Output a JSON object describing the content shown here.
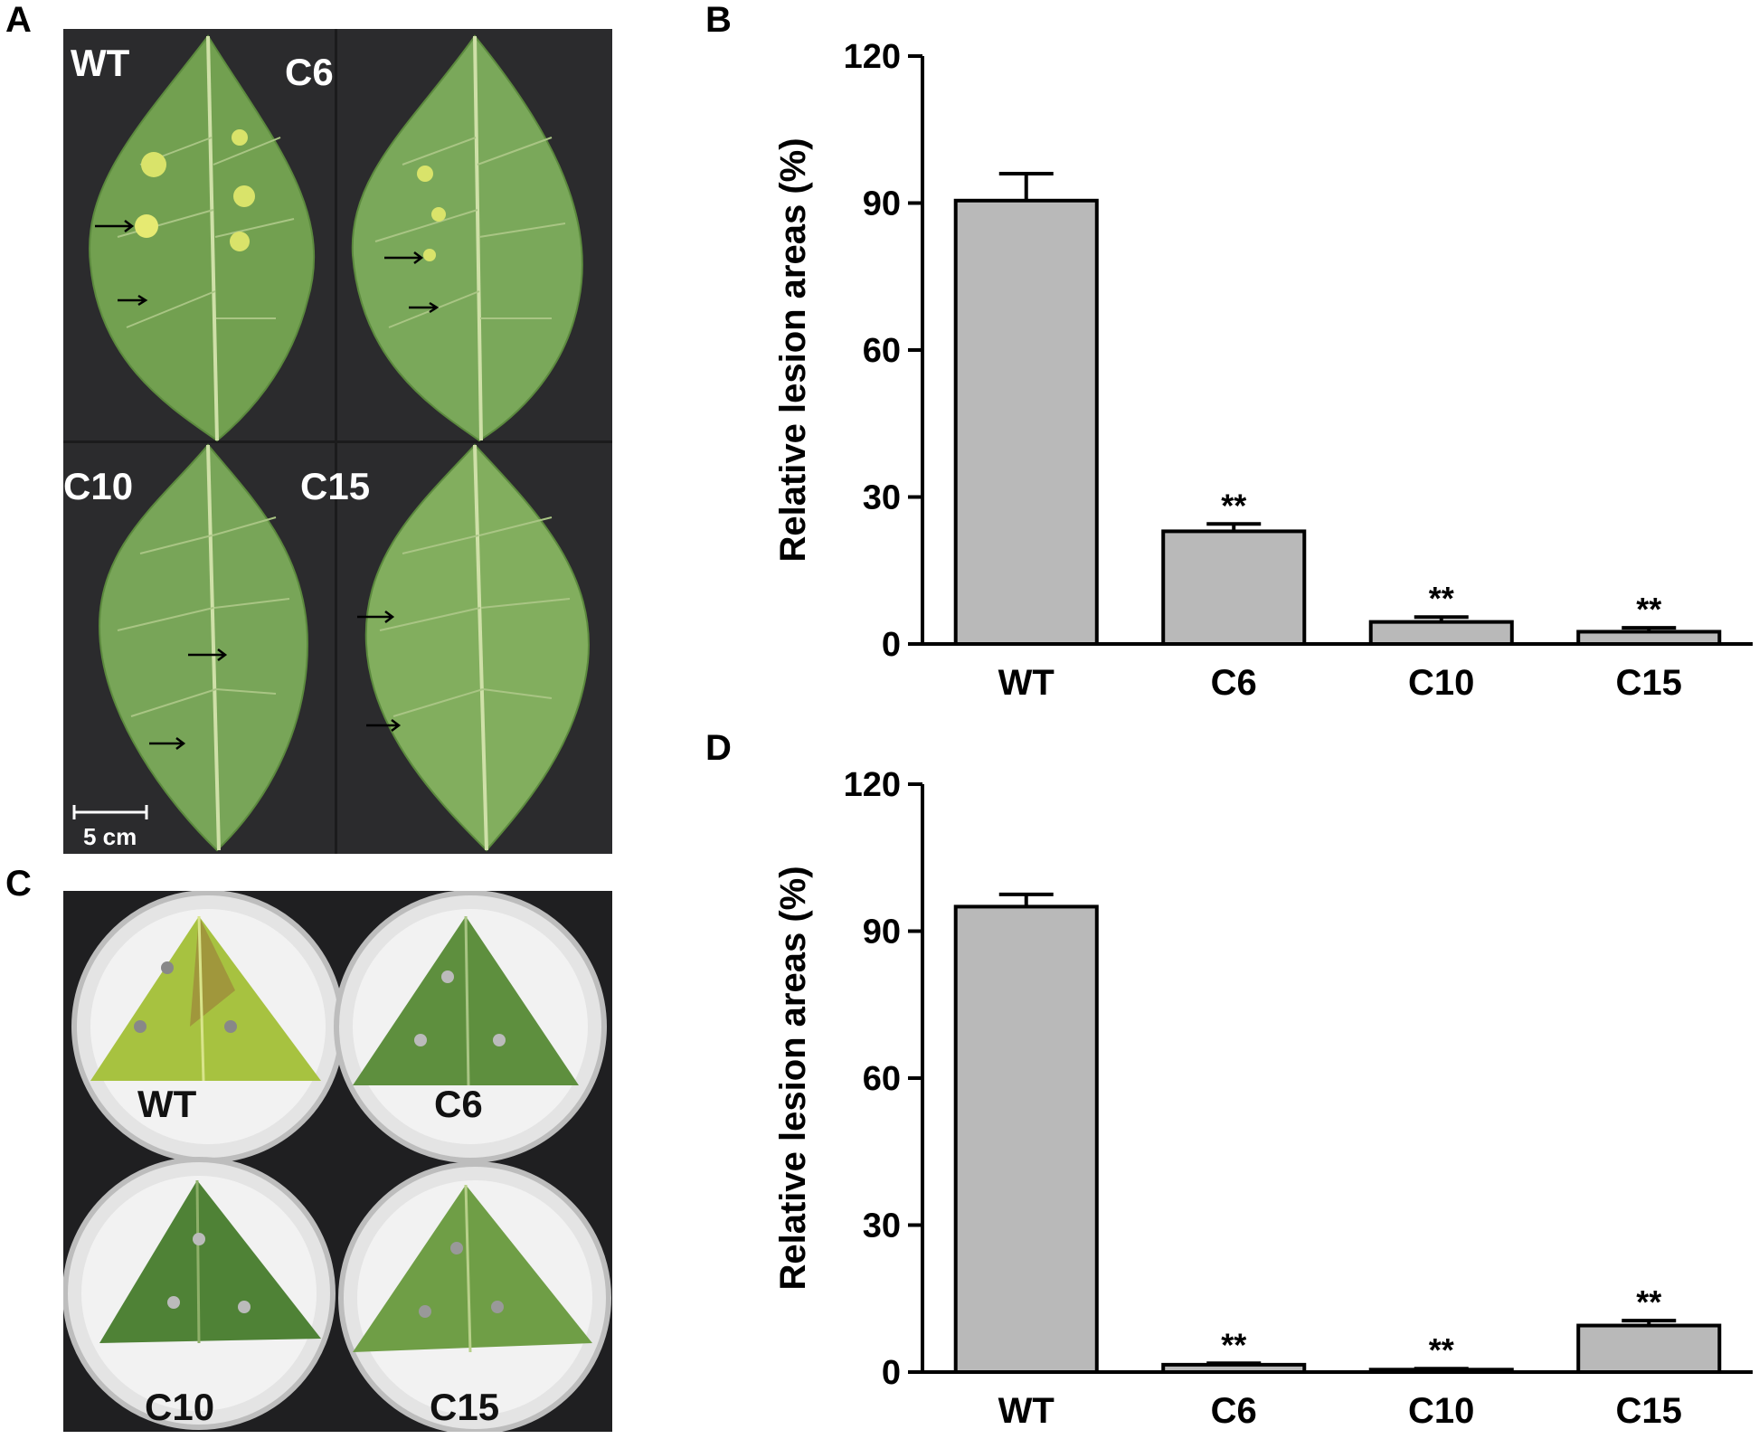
{
  "panels": {
    "a": "A",
    "b": "B",
    "c": "C",
    "d": "D"
  },
  "photo_a": {
    "leaf_labels": [
      "WT",
      "C6",
      "C10",
      "C15"
    ],
    "scale_bar_label": "5 cm"
  },
  "photo_c": {
    "dish_labels": [
      "WT",
      "C6",
      "C10",
      "C15"
    ]
  },
  "colors": {
    "bar_fill": "#b9b9b9",
    "bar_stroke": "#000000",
    "leaf_green": "#6f9a4e",
    "photo_background": "#2b2b2d"
  },
  "chart_data": [
    {
      "panel": "B",
      "type": "bar",
      "categories": [
        "WT",
        "C6",
        "C10",
        "C15"
      ],
      "values": [
        90.5,
        23,
        4.5,
        2.5
      ],
      "errors": [
        5.5,
        1.5,
        1.0,
        0.8
      ],
      "significance": [
        "",
        "**",
        "**",
        "**"
      ],
      "title": "",
      "xlabel": "",
      "ylabel": "Relative lesion areas (%)",
      "ylim": [
        0,
        120
      ],
      "yticks": [
        "0",
        "30",
        "60",
        "90",
        "120"
      ],
      "grid": false,
      "legend": "none"
    },
    {
      "panel": "D",
      "type": "bar",
      "categories": [
        "WT",
        "C6",
        "C10",
        "C15"
      ],
      "values": [
        95,
        1.5,
        0.5,
        9.5
      ],
      "errors": [
        2.5,
        0.3,
        0.2,
        1.0
      ],
      "significance": [
        "",
        "**",
        "**",
        "**"
      ],
      "title": "",
      "xlabel": "",
      "ylabel": "Relative lesion areas (%)",
      "ylim": [
        0,
        120
      ],
      "yticks": [
        "0",
        "30",
        "60",
        "90",
        "120"
      ],
      "grid": false,
      "legend": "none"
    }
  ]
}
